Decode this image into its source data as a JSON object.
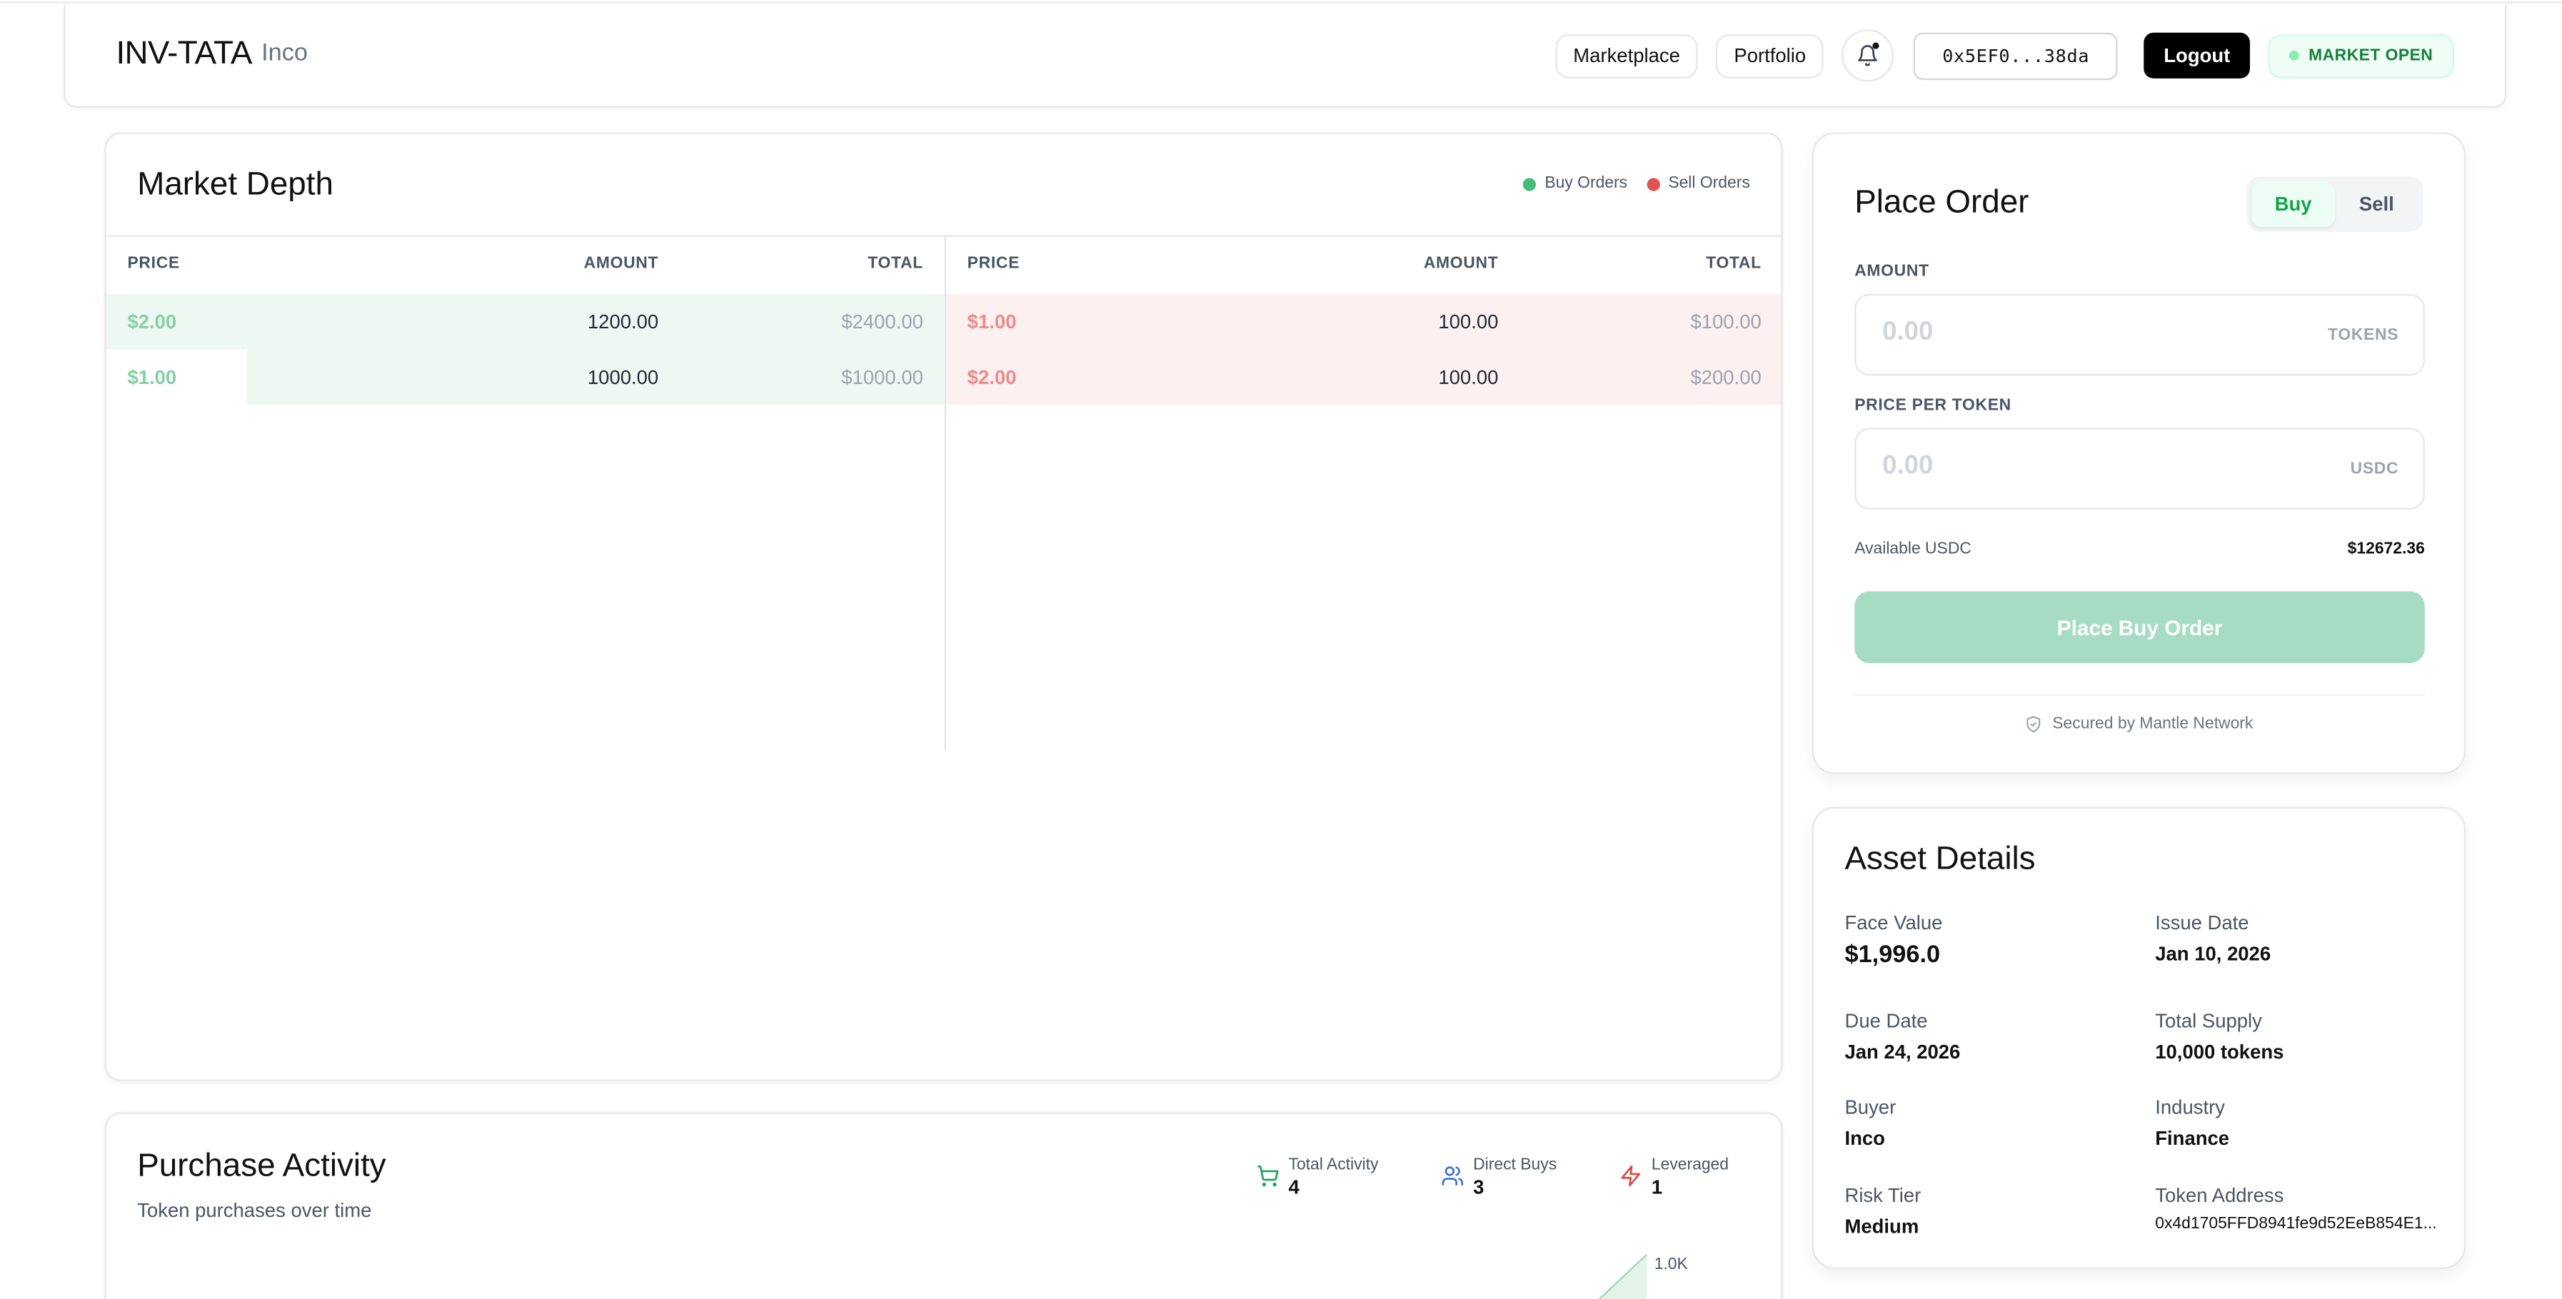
{
  "nav": {
    "title": "INV-TATA",
    "subtitle": "Inco",
    "marketplace": "Marketplace",
    "portfolio": "Portfolio",
    "wallet": "0x5EF0...38da",
    "logout": "Logout",
    "status": "MARKET OPEN"
  },
  "depth": {
    "title": "Market Depth",
    "legend_buy": "Buy Orders",
    "legend_sell": "Sell Orders",
    "colors": {
      "buy": "#48bb78",
      "sell": "#e05252"
    },
    "headers": {
      "price": "PRICE",
      "amount": "AMOUNT",
      "total": "TOTAL"
    },
    "buy": [
      {
        "price": "$2.00",
        "amount": "1200.00",
        "total": "$2400.00",
        "depth": 1.0
      },
      {
        "price": "$1.00",
        "amount": "1000.00",
        "total": "$1000.00",
        "depth": 0.833
      }
    ],
    "sell": [
      {
        "price": "$1.00",
        "amount": "100.00",
        "total": "$100.00",
        "depth": 1.0
      },
      {
        "price": "$2.00",
        "amount": "100.00",
        "total": "$200.00",
        "depth": 1.0
      }
    ]
  },
  "activity": {
    "title": "Purchase Activity",
    "subtitle": "Token purchases over time",
    "total_label": "Total Activity",
    "total_value": "4",
    "direct_label": "Direct Buys",
    "direct_value": "3",
    "leveraged_label": "Leveraged",
    "leveraged_value": "1",
    "axis_tick": "1.0K"
  },
  "order": {
    "title": "Place Order",
    "tab_buy": "Buy",
    "tab_sell": "Sell",
    "amount_label": "AMOUNT",
    "amount_placeholder": "0.00",
    "amount_unit": "TOKENS",
    "price_label": "PRICE PER TOKEN",
    "price_placeholder": "0.00",
    "price_unit": "USDC",
    "available_label": "Available USDC",
    "available_value": "$12672.36",
    "cta": "Place Buy Order",
    "secured": "Secured by Mantle Network"
  },
  "asset": {
    "title": "Asset Details",
    "face_value_label": "Face Value",
    "face_value": "$1,996.0",
    "issue_date_label": "Issue Date",
    "issue_date": "Jan 10, 2026",
    "due_date_label": "Due Date",
    "due_date": "Jan 24, 2026",
    "total_supply_label": "Total Supply",
    "total_supply": "10,000 tokens",
    "buyer_label": "Buyer",
    "buyer": "Inco",
    "industry_label": "Industry",
    "industry": "Finance",
    "risk_label": "Risk Tier",
    "risk": "Medium",
    "token_label": "Token Address",
    "token": "0x4d1705FFD8941fe9d52EeB854E1..."
  }
}
